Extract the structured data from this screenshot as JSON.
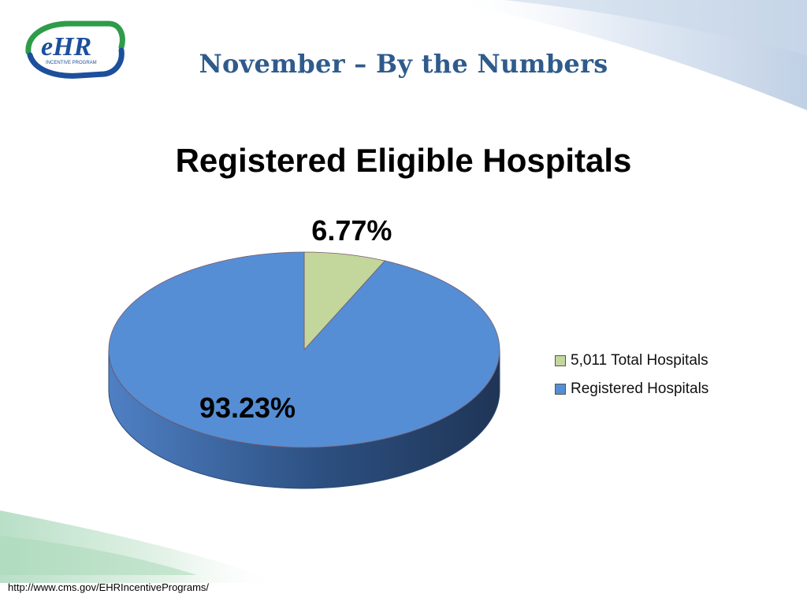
{
  "header": {
    "logo_text": "eHR",
    "logo_subtext": "INCENTIVE PROGRAM",
    "slide_title": "November – By the Numbers"
  },
  "footer": {
    "url": "http://www.cms.gov/EHRIncentivePrograms/"
  },
  "colors": {
    "title_blue": "#2f5b8c",
    "green_slice": "#c3d69b",
    "blue_slice": "#558ed5",
    "logo_green": "#2e9c48",
    "logo_blue": "#1c4f9c"
  },
  "chart_data": {
    "type": "pie",
    "title": "Registered Eligible Hospitals",
    "three_d": true,
    "legend_position": "right",
    "slices": [
      {
        "name": "5,011 Total Hospitals",
        "value": 6.77,
        "label": "6.77%",
        "color": "#c3d69b"
      },
      {
        "name": "Registered Hospitals",
        "value": 93.23,
        "label": "93.23%",
        "color": "#558ed5"
      }
    ]
  }
}
